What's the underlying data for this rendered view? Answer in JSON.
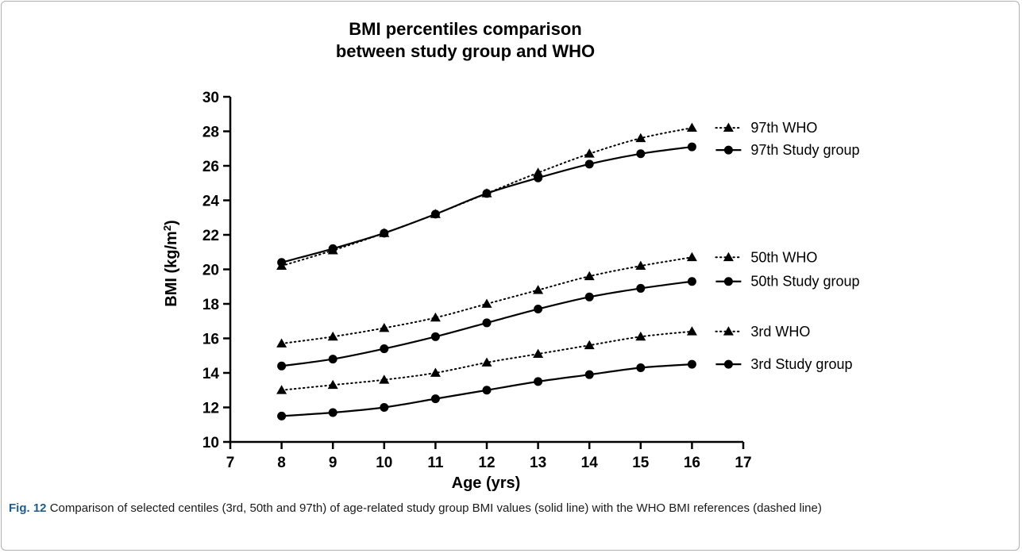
{
  "chart_data": {
    "type": "line",
    "title_lines": [
      "BMI percentiles comparison",
      "between study group and WHO"
    ],
    "xlabel": "Age (yrs)",
    "ylabel": "BMI (kg/m2)",
    "ylabel_parts": {
      "base": "BMI (kg/m",
      "sup": "2",
      "close": ")"
    },
    "xlim": [
      7,
      17
    ],
    "ylim": [
      10,
      30
    ],
    "xticks": [
      7,
      8,
      9,
      10,
      11,
      12,
      13,
      14,
      15,
      16,
      17
    ],
    "yticks": [
      10,
      12,
      14,
      16,
      18,
      20,
      22,
      24,
      26,
      28,
      30
    ],
    "x": [
      8,
      9,
      10,
      11,
      12,
      13,
      14,
      15,
      16
    ],
    "grid": false,
    "legend_placement": "right, beside line ends",
    "series": [
      {
        "name": "97th WHO",
        "style": "dotted",
        "marker": "triangle",
        "values": [
          20.2,
          21.1,
          22.1,
          23.2,
          24.4,
          25.6,
          26.7,
          27.6,
          28.2
        ]
      },
      {
        "name": "97th Study group",
        "style": "solid",
        "marker": "circle",
        "values": [
          20.4,
          21.2,
          22.1,
          23.2,
          24.4,
          25.3,
          26.1,
          26.7,
          27.1
        ]
      },
      {
        "name": "50th WHO",
        "style": "dotted",
        "marker": "triangle",
        "values": [
          15.7,
          16.1,
          16.6,
          17.2,
          18.0,
          18.8,
          19.6,
          20.2,
          20.7
        ]
      },
      {
        "name": "50th Study group",
        "style": "solid",
        "marker": "circle",
        "values": [
          14.4,
          14.8,
          15.4,
          16.1,
          16.9,
          17.7,
          18.4,
          18.9,
          19.3
        ]
      },
      {
        "name": "3rd WHO",
        "style": "dotted",
        "marker": "triangle",
        "values": [
          13.0,
          13.3,
          13.6,
          14.0,
          14.6,
          15.1,
          15.6,
          16.1,
          16.4
        ]
      },
      {
        "name": "3rd Study group",
        "style": "solid",
        "marker": "circle",
        "values": [
          11.5,
          11.7,
          12.0,
          12.5,
          13.0,
          13.5,
          13.9,
          14.3,
          14.5
        ]
      }
    ]
  },
  "caption": {
    "label": "Fig. 12",
    "text": "Comparison of selected centiles (3rd, 50th and 97th) of age-related study group BMI values (solid line) with the WHO BMI references (dashed line)"
  }
}
